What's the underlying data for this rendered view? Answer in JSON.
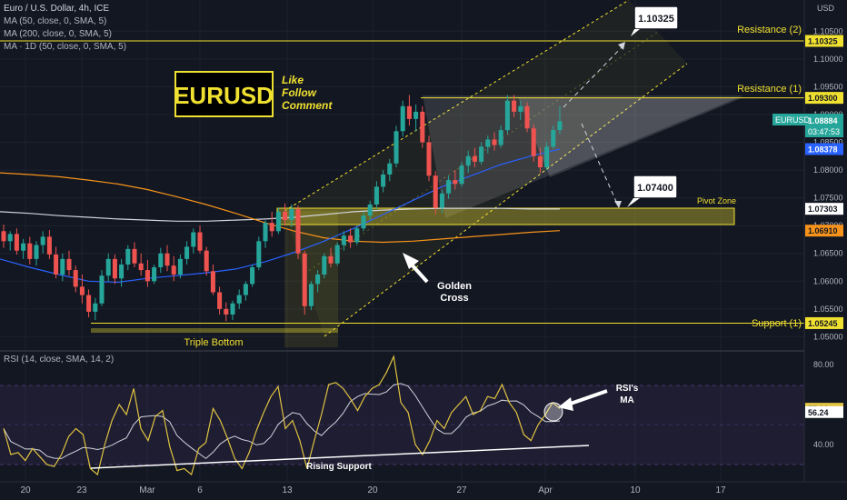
{
  "legend": {
    "title": "Euro / U.S. Dollar, 4h, ICE",
    "ma50": "MA (50, close, 0, SMA, 5)",
    "ma200": "MA (200, close, 0, SMA, 5)",
    "ma1d": "MA · 1D (50, close, 0, SMA, 5)",
    "rsi": "RSI (14, close, SMA, 14, 2)"
  },
  "currency": "USD",
  "logo": {
    "text": "EURUSD",
    "cta": [
      "Like",
      "Follow",
      "Comment"
    ]
  },
  "annotations": {
    "target_high": "1.10325",
    "target_low": "1.07400",
    "resistance2": "Resistance (2)",
    "resistance1": "Resistance (1)",
    "pivot": "Pivot Zone",
    "support": "Support (1)",
    "triple_bottom": "Triple Bottom",
    "golden_cross": [
      "Golden",
      "Cross"
    ],
    "rising_support": "Rising Support",
    "rsi_ma": [
      "RSI's",
      "MA"
    ]
  },
  "price_tags": {
    "symbol": "EURUSD",
    "price": "1.08884",
    "countdown": "03:47:53",
    "ma50": "1.08378",
    "ma1d": "1.07303",
    "ma200": "1.06910",
    "resistance2": "1.10325",
    "resistance1": "1.09300",
    "support1": "1.05245",
    "rsi": "57.91",
    "rsi_ma": "56.24"
  },
  "colors": {
    "background": "#131722",
    "bull": "#26a69a",
    "bear": "#ef5350",
    "ma50": "#2962ff",
    "ma200": "#f7931a",
    "ma1d": "#d1d4dc",
    "level": "#f0e030",
    "rsi": "#e0c341",
    "rsi_ma": "#d1d4dc",
    "rsi_band": "#7e57c2"
  },
  "chart_data": {
    "type": "candlestick",
    "yaxis_ticks": [
      "1.10500",
      "1.10000",
      "1.09500",
      "1.09000",
      "1.08500",
      "1.08000",
      "1.07500",
      "1.07000",
      "1.06500",
      "1.06000",
      "1.05500",
      "1.05000"
    ],
    "xaxis_ticks": [
      "20",
      "23",
      "Mar",
      "6",
      "13",
      "20",
      "27",
      "Apr",
      "10",
      "17"
    ],
    "rsi_ticks": [
      "80.00",
      "40.00"
    ],
    "levels": {
      "resistance2": 1.10325,
      "resistance1": 1.093,
      "support1": 1.05245,
      "pivot_zone": [
        1.0708,
        1.0735
      ]
    },
    "ohlc": [
      [
        1.069,
        1.0702,
        1.066,
        1.0672
      ],
      [
        1.0672,
        1.069,
        1.0655,
        1.0685
      ],
      [
        1.0685,
        1.0695,
        1.0648,
        1.0655
      ],
      [
        1.0655,
        1.0676,
        1.064,
        1.0668
      ],
      [
        1.0668,
        1.068,
        1.063,
        1.064
      ],
      [
        1.064,
        1.0672,
        1.0628,
        1.0665
      ],
      [
        1.0665,
        1.069,
        1.065,
        1.068
      ],
      [
        1.068,
        1.0692,
        1.064,
        1.0648
      ],
      [
        1.0648,
        1.0662,
        1.0605,
        1.0612
      ],
      [
        1.0612,
        1.065,
        1.06,
        1.064
      ],
      [
        1.064,
        1.0655,
        1.061,
        1.062
      ],
      [
        1.062,
        1.0628,
        1.058,
        1.059
      ],
      [
        1.059,
        1.0612,
        1.056,
        1.0575
      ],
      [
        1.0575,
        1.0585,
        1.0535,
        1.0545
      ],
      [
        1.0545,
        1.057,
        1.053,
        1.056
      ],
      [
        1.056,
        1.062,
        1.0555,
        1.061
      ],
      [
        1.061,
        1.065,
        1.06,
        1.064
      ],
      [
        1.064,
        1.0648,
        1.0595,
        1.0605
      ],
      [
        1.0605,
        1.064,
        1.059,
        1.063
      ],
      [
        1.063,
        1.0665,
        1.062,
        1.0658
      ],
      [
        1.0658,
        1.067,
        1.0625,
        1.0632
      ],
      [
        1.0632,
        1.065,
        1.061,
        1.062
      ],
      [
        1.062,
        1.0638,
        1.059,
        1.06
      ],
      [
        1.06,
        1.063,
        1.0595,
        1.0625
      ],
      [
        1.0625,
        1.066,
        1.0615,
        1.065
      ],
      [
        1.065,
        1.0665,
        1.0618,
        1.0628
      ],
      [
        1.0628,
        1.0645,
        1.06,
        1.0612
      ],
      [
        1.0612,
        1.0648,
        1.0605,
        1.064
      ],
      [
        1.064,
        1.0672,
        1.063,
        1.0662
      ],
      [
        1.0662,
        1.0695,
        1.065,
        1.0688
      ],
      [
        1.0688,
        1.07,
        1.065,
        1.0655
      ],
      [
        1.0655,
        1.0662,
        1.061,
        1.0618
      ],
      [
        1.0618,
        1.063,
        1.0575,
        1.058
      ],
      [
        1.058,
        1.059,
        1.054,
        1.055
      ],
      [
        1.055,
        1.0562,
        1.0528,
        1.054
      ],
      [
        1.054,
        1.0565,
        1.053,
        1.056
      ],
      [
        1.056,
        1.0585,
        1.055,
        1.0575
      ],
      [
        1.0575,
        1.06,
        1.0565,
        1.0595
      ],
      [
        1.0595,
        1.063,
        1.059,
        1.0625
      ],
      [
        1.0625,
        1.068,
        1.062,
        1.0672
      ],
      [
        1.0672,
        1.071,
        1.066,
        1.0705
      ],
      [
        1.0705,
        1.0725,
        1.068,
        1.069
      ],
      [
        1.069,
        1.0732,
        1.0685,
        1.0725
      ],
      [
        1.0725,
        1.074,
        1.07,
        1.071
      ],
      [
        1.071,
        1.0738,
        1.0698,
        1.073
      ],
      [
        1.073,
        1.0736,
        1.064,
        1.065
      ],
      [
        1.065,
        1.0655,
        1.054,
        1.0555
      ],
      [
        1.0555,
        1.06,
        1.0548,
        1.0595
      ],
      [
        1.0595,
        1.062,
        1.058,
        1.0612
      ],
      [
        1.0612,
        1.065,
        1.0605,
        1.0645
      ],
      [
        1.0645,
        1.066,
        1.0625,
        1.0632
      ],
      [
        1.0632,
        1.067,
        1.0628,
        1.0665
      ],
      [
        1.0665,
        1.069,
        1.0655,
        1.0682
      ],
      [
        1.0682,
        1.0695,
        1.066,
        1.067
      ],
      [
        1.067,
        1.07,
        1.0665,
        1.0695
      ],
      [
        1.0695,
        1.0725,
        1.069,
        1.0718
      ],
      [
        1.0718,
        1.0745,
        1.071,
        1.0738
      ],
      [
        1.0738,
        1.078,
        1.073,
        1.077
      ],
      [
        1.077,
        1.08,
        1.076,
        1.0792
      ],
      [
        1.0792,
        1.082,
        1.078,
        1.0812
      ],
      [
        1.0812,
        1.088,
        1.0805,
        1.087
      ],
      [
        1.087,
        1.0925,
        1.086,
        1.0915
      ],
      [
        1.0915,
        1.0935,
        1.088,
        1.0892
      ],
      [
        1.0892,
        1.0918,
        1.087,
        1.0905
      ],
      [
        1.0905,
        1.0915,
        1.084,
        1.085
      ],
      [
        1.085,
        1.0862,
        1.078,
        1.079
      ],
      [
        1.079,
        1.0798,
        1.072,
        1.0732
      ],
      [
        1.0732,
        1.0765,
        1.0722,
        1.0758
      ],
      [
        1.0758,
        1.079,
        1.0748,
        1.0782
      ],
      [
        1.0782,
        1.08,
        1.0765,
        1.0775
      ],
      [
        1.0775,
        1.0815,
        1.077,
        1.0808
      ],
      [
        1.0808,
        1.0835,
        1.0795,
        1.0825
      ],
      [
        1.0825,
        1.084,
        1.0805,
        1.0815
      ],
      [
        1.0815,
        1.085,
        1.081,
        1.0842
      ],
      [
        1.0842,
        1.0862,
        1.083,
        1.0855
      ],
      [
        1.0855,
        1.0868,
        1.0835,
        1.0845
      ],
      [
        1.0845,
        1.088,
        1.084,
        1.0872
      ],
      [
        1.0872,
        1.0935,
        1.0865,
        1.0925
      ],
      [
        1.0925,
        1.0935,
        1.0895,
        1.0905
      ],
      [
        1.0905,
        1.0925,
        1.089,
        1.0915
      ],
      [
        1.0915,
        1.0922,
        1.0868,
        1.0875
      ],
      [
        1.0875,
        1.0882,
        1.0815,
        1.0825
      ],
      [
        1.0825,
        1.084,
        1.0795,
        1.0805
      ],
      [
        1.0805,
        1.085,
        1.08,
        1.0842
      ],
      [
        1.0842,
        1.088,
        1.0838,
        1.0872
      ],
      [
        1.0872,
        1.0915,
        1.0865,
        1.0888
      ]
    ],
    "ma50": [
      1.064,
      1.0625,
      1.0612,
      1.06,
      1.0598,
      1.0605,
      1.061,
      1.0615,
      1.0622,
      1.0635,
      1.0652,
      1.0672,
      1.0695,
      1.072,
      1.0745,
      1.077,
      1.079,
      1.081,
      1.0825,
      1.0838
    ],
    "ma200": [
      1.0795,
      1.0792,
      1.0788,
      1.0782,
      1.0775,
      1.0765,
      1.0752,
      1.0738,
      1.0722,
      1.0705,
      1.069,
      1.0678,
      1.0672,
      1.067,
      1.0672,
      1.0676,
      1.068,
      1.0684,
      1.0688,
      1.0691
    ],
    "ma1d": [
      1.0725,
      1.0722,
      1.0718,
      1.0715,
      1.0712,
      1.071,
      1.0708,
      1.0708,
      1.071,
      1.0712,
      1.0715,
      1.072,
      1.0725,
      1.0728,
      1.073,
      1.0731,
      1.0731,
      1.0731,
      1.073,
      1.073
    ],
    "rsi": [
      48,
      35,
      36,
      32,
      38,
      34,
      30,
      29,
      35,
      44,
      48,
      45,
      28,
      25,
      40,
      52,
      60,
      55,
      68,
      48,
      42,
      54,
      57,
      39,
      27,
      28,
      25,
      38,
      41,
      58,
      52,
      43,
      33,
      28,
      36,
      47,
      56,
      64,
      69,
      48,
      52,
      42,
      28,
      42,
      55,
      70,
      71,
      68,
      63,
      57,
      64,
      68,
      70,
      76,
      84,
      61,
      56,
      40,
      35,
      42,
      52,
      48,
      56,
      60,
      64,
      55,
      57,
      64,
      63,
      70,
      61,
      56,
      45,
      42,
      50,
      55,
      61,
      58
    ]
  }
}
